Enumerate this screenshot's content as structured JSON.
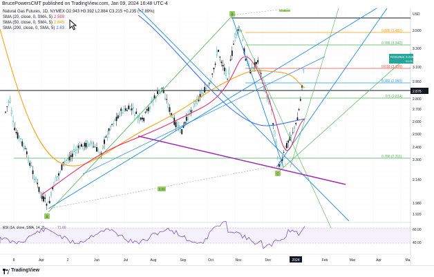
{
  "header": {
    "published": "BrucePowersCMT published on TradingView.com, Jan 09, 2024 16:48 UTC-4"
  },
  "legend": {
    "title": "Natural Gas Futures, 1D, NYMEX  O2.943 H3.392 L2.884 C3.215 +0.235 (+7.89%)",
    "sma20": {
      "text": "SMA (20, close, 0, SMA, 5)",
      "value": "2.589",
      "color": "#e91e63"
    },
    "sma50": {
      "text": "SMA (50, close, 0, SMA, 5)",
      "value": "2.845",
      "color": "#ff9800"
    },
    "sma200": {
      "text": "SMA (200, close, 0, SMA, 5)",
      "value": "2.63",
      "color": "#2962ff"
    }
  },
  "price_axis": {
    "currency": "USD",
    "ticks": [
      "3.500",
      "3.300",
      "3.100",
      "2.950",
      "2.800",
      "2.700",
      "2.600",
      "2.500",
      "2.400",
      "2.300",
      "2.140",
      "1.980",
      "1.920"
    ],
    "current": {
      "label": "NGG2024",
      "price": "3.245",
      "time": "01:21:58"
    },
    "marker": "2.876"
  },
  "fib_levels": [
    {
      "label": "0.886 (3.482)",
      "color": "#ff9800"
    },
    {
      "label": "0.786 (3.342)",
      "color": "#4caf50"
    },
    {
      "label": "0.618 (3.106)",
      "color": "#f44336"
    },
    {
      "label": "0.382 (2.950)",
      "color": "#2196f3"
    },
    {
      "label": "0.5 (2.814)",
      "color": "#4caf50"
    },
    {
      "label": "0.786 (2.311)",
      "color": "#4caf50"
    }
  ],
  "pattern_labels": {
    "A": "A",
    "B": "B",
    "C": "C",
    "D": "D"
  },
  "mid_label": "0.83",
  "rsi": {
    "text": "RSI (14, close, SMA, 14, 2)",
    "value": "71.09",
    "ticks": [
      "60.00",
      "40.00"
    ]
  },
  "time_axis": [
    "8",
    "Apr",
    "2",
    "Jun",
    "Jul",
    "Aug",
    "Sep",
    "Oct",
    "Nov",
    "Dec",
    "2024",
    "Feb",
    "Mar",
    "Apr",
    "Ma"
  ],
  "footer": {
    "brand": "TradingView"
  }
}
